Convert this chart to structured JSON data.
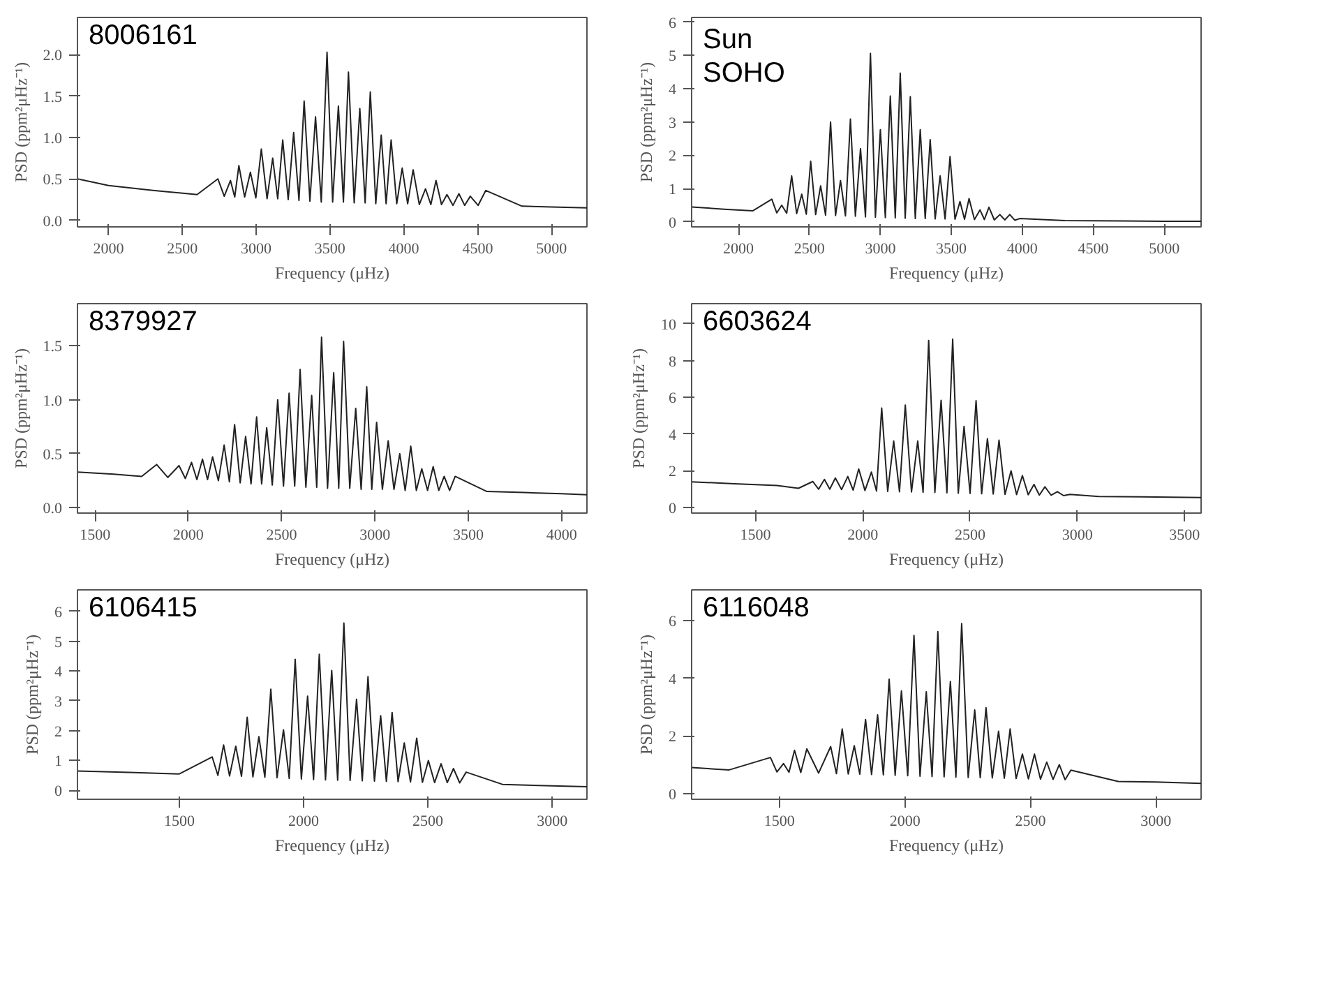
{
  "chart_data": [
    {
      "type": "line",
      "xlabel": "Frequency (μHz)",
      "ylabel": "PSD (ppm²μHz⁻¹)",
      "annotations": [
        "8006161"
      ],
      "grid": false,
      "xlim": [
        1790,
        5240
      ],
      "ylim": [
        -0.08,
        2.45
      ],
      "xticks": [
        2000,
        2500,
        3000,
        3500,
        4000,
        4500,
        5000
      ],
      "yticks": [
        {
          "value": 0,
          "label": "0.0"
        },
        {
          "value": 0.5,
          "label": "0.5"
        },
        {
          "value": 1,
          "label": "1.0"
        },
        {
          "value": 1.5,
          "label": "1.5"
        },
        {
          "value": 2,
          "label": "2.0"
        }
      ],
      "series": [
        {
          "color": "#222222",
          "x": [
            1790,
            2000,
            2300,
            2600,
            2741,
            2784,
            2826,
            2855,
            2883,
            2922,
            2961,
            2998,
            3035,
            3074,
            3112,
            3146,
            3180,
            3217,
            3254,
            3290,
            3325,
            3364,
            3402,
            3441,
            3480,
            3518,
            3557,
            3591,
            3625,
            3664,
            3702,
            3738,
            3773,
            3810,
            3847,
            3880,
            3914,
            3952,
            3989,
            4026,
            4063,
            4105,
            4147,
            4183,
            4218,
            4255,
            4292,
            4333,
            4373,
            4412,
            4450,
            4503,
            4555,
            4800,
            5000,
            5240
          ],
          "values": [
            0.5,
            0.42,
            0.36,
            0.31,
            0.5,
            0.29,
            0.48,
            0.28,
            0.66,
            0.28,
            0.58,
            0.27,
            0.86,
            0.26,
            0.75,
            0.26,
            0.97,
            0.25,
            1.06,
            0.24,
            1.44,
            0.23,
            1.25,
            0.22,
            2.03,
            0.22,
            1.38,
            0.22,
            1.79,
            0.21,
            1.35,
            0.21,
            1.55,
            0.2,
            1.03,
            0.2,
            0.97,
            0.2,
            0.63,
            0.2,
            0.61,
            0.19,
            0.38,
            0.19,
            0.48,
            0.19,
            0.31,
            0.18,
            0.32,
            0.18,
            0.29,
            0.18,
            0.36,
            0.17,
            0.16,
            0.15
          ]
        }
      ]
    },
    {
      "type": "line",
      "xlabel": "Frequency (μHz)",
      "ylabel": "PSD (ppm²μHz⁻¹)",
      "annotations": [
        "Sun",
        "SOHO"
      ],
      "grid": false,
      "xlim": [
        1670,
        5260
      ],
      "ylim": [
        -0.15,
        6.14
      ],
      "xticks": [
        2000,
        2500,
        3000,
        3500,
        4000,
        4500,
        5000
      ],
      "yticks": [
        0,
        1,
        2,
        3,
        4,
        5,
        6
      ],
      "series": [
        {
          "color": "#222222",
          "x": [
            1670,
            1900,
            2100,
            2235,
            2270,
            2305,
            2340,
            2375,
            2410,
            2446,
            2478,
            2509,
            2544,
            2579,
            2614,
            2649,
            2684,
            2719,
            2754,
            2789,
            2824,
            2860,
            2895,
            2930,
            2965,
            3000,
            3035,
            3070,
            3105,
            3140,
            3175,
            3211,
            3246,
            3281,
            3316,
            3351,
            3386,
            3421,
            3456,
            3491,
            3526,
            3561,
            3593,
            3625,
            3663,
            3702,
            3733,
            3765,
            3803,
            3842,
            3877,
            3912,
            3947,
            3982,
            4300,
            4700,
            5000,
            5260
          ],
          "values": [
            0.45,
            0.38,
            0.33,
            0.68,
            0.27,
            0.5,
            0.26,
            1.38,
            0.25,
            0.83,
            0.23,
            1.82,
            0.22,
            1.08,
            0.2,
            3.0,
            0.19,
            1.24,
            0.18,
            3.09,
            0.17,
            2.2,
            0.15,
            5.06,
            0.14,
            2.77,
            0.13,
            3.78,
            0.12,
            4.47,
            0.11,
            3.76,
            0.1,
            2.77,
            0.1,
            2.47,
            0.09,
            1.38,
            0.09,
            1.96,
            0.08,
            0.61,
            0.08,
            0.7,
            0.07,
            0.36,
            0.07,
            0.44,
            0.06,
            0.22,
            0.06,
            0.22,
            0.05,
            0.1,
            0.04,
            0.03,
            0.02,
            0.02
          ]
        }
      ]
    },
    {
      "type": "line",
      "xlabel": "Frequency (μHz)",
      "ylabel": "PSD (ppm²μHz⁻¹)",
      "annotations": [
        "8379927"
      ],
      "grid": false,
      "xlim": [
        1406,
        4136
      ],
      "ylim": [
        -0.05,
        1.89
      ],
      "xticks": [
        1500,
        2000,
        2500,
        3000,
        3500,
        4000
      ],
      "yticks": [
        {
          "value": 0,
          "label": "0.0"
        },
        {
          "value": 0.5,
          "label": "0.5"
        },
        {
          "value": 1,
          "label": "1.0"
        },
        {
          "value": 1.5,
          "label": "1.5"
        }
      ],
      "series": [
        {
          "color": "#222222",
          "x": [
            1406,
            1600,
            1750,
            1830,
            1890,
            1950,
            1984,
            2017,
            2046,
            2076,
            2103,
            2130,
            2161,
            2192,
            2220,
            2248,
            2278,
            2307,
            2336,
            2366,
            2393,
            2420,
            2450,
            2479,
            2510,
            2540,
            2570,
            2599,
            2630,
            2661,
            2688,
            2714,
            2746,
            2779,
            2806,
            2832,
            2865,
            2897,
            2926,
            2956,
            2983,
            3009,
            3040,
            3071,
            3102,
            3133,
            3162,
            3192,
            3222,
            3251,
            3282,
            3312,
            3342,
            3371,
            3400,
            3430,
            3600,
            3800,
            4000,
            4136
          ],
          "values": [
            0.33,
            0.31,
            0.29,
            0.4,
            0.28,
            0.39,
            0.27,
            0.42,
            0.26,
            0.45,
            0.26,
            0.47,
            0.25,
            0.58,
            0.24,
            0.77,
            0.23,
            0.66,
            0.22,
            0.84,
            0.22,
            0.74,
            0.21,
            1.0,
            0.2,
            1.06,
            0.2,
            1.28,
            0.19,
            1.04,
            0.19,
            1.58,
            0.18,
            1.25,
            0.18,
            1.54,
            0.18,
            0.92,
            0.17,
            1.12,
            0.17,
            0.79,
            0.17,
            0.62,
            0.17,
            0.5,
            0.16,
            0.57,
            0.16,
            0.36,
            0.16,
            0.38,
            0.16,
            0.29,
            0.16,
            0.29,
            0.15,
            0.14,
            0.13,
            0.12
          ]
        }
      ]
    },
    {
      "type": "line",
      "xlabel": "Frequency (μHz)",
      "ylabel": "PSD (ppm²μHz⁻¹)",
      "annotations": [
        "6603624"
      ],
      "grid": false,
      "xlim": [
        1202,
        3577
      ],
      "ylim": [
        -0.3,
        11.1
      ],
      "xticks": [
        1500,
        2000,
        2500,
        3000,
        3500
      ],
      "yticks": [
        0,
        2,
        4,
        6,
        8,
        10
      ],
      "series": [
        {
          "color": "#222222",
          "x": [
            1202,
            1400,
            1600,
            1700,
            1767,
            1794,
            1821,
            1846,
            1872,
            1901,
            1930,
            1955,
            1981,
            2010,
            2040,
            2064,
            2088,
            2116,
            2144,
            2171,
            2198,
            2227,
            2256,
            2281,
            2307,
            2336,
            2365,
            2392,
            2419,
            2445,
            2472,
            2500,
            2528,
            2554,
            2581,
            2608,
            2635,
            2663,
            2691,
            2717,
            2744,
            2771,
            2798,
            2823,
            2849,
            2878,
            2907,
            2936,
            2965,
            3100,
            3300,
            3577
          ],
          "values": [
            1.4,
            1.3,
            1.2,
            1.05,
            1.42,
            1.0,
            1.53,
            1.0,
            1.61,
            0.98,
            1.69,
            0.95,
            2.1,
            0.93,
            1.93,
            0.9,
            5.42,
            0.88,
            3.62,
            0.86,
            5.58,
            0.85,
            3.62,
            0.83,
            9.1,
            0.82,
            5.84,
            0.8,
            9.17,
            0.78,
            4.42,
            0.77,
            5.82,
            0.75,
            3.75,
            0.74,
            3.67,
            0.72,
            2.0,
            0.71,
            1.74,
            0.7,
            1.26,
            0.68,
            1.13,
            0.67,
            0.86,
            0.65,
            0.72,
            0.6,
            0.58,
            0.55
          ]
        }
      ]
    },
    {
      "type": "line",
      "xlabel": "Frequency (μHz)",
      "ylabel": "PSD (ppm²μHz⁻¹)",
      "annotations": [
        "6106415"
      ],
      "grid": false,
      "xlim": [
        1090,
        3140
      ],
      "ylim": [
        -0.3,
        6.72
      ],
      "xticks": [
        1500,
        2000,
        2500,
        3000
      ],
      "yticks": [
        0,
        1,
        2,
        3,
        4,
        5,
        6
      ],
      "series": [
        {
          "color": "#222222",
          "x": [
            1090,
            1300,
            1500,
            1632,
            1655,
            1678,
            1702,
            1727,
            1750,
            1773,
            1796,
            1820,
            1844,
            1868,
            1893,
            1919,
            1942,
            1966,
            1991,
            2016,
            2040,
            2063,
            2088,
            2113,
            2137,
            2162,
            2187,
            2213,
            2236,
            2259,
            2285,
            2310,
            2333,
            2356,
            2380,
            2405,
            2430,
            2455,
            2478,
            2502,
            2527,
            2553,
            2578,
            2603,
            2628,
            2654,
            2800,
            3000,
            3140
          ],
          "values": [
            0.65,
            0.6,
            0.55,
            1.12,
            0.5,
            1.52,
            0.48,
            1.48,
            0.47,
            2.45,
            0.45,
            1.8,
            0.44,
            3.39,
            0.42,
            2.03,
            0.4,
            4.39,
            0.38,
            3.16,
            0.36,
            4.56,
            0.35,
            4.02,
            0.34,
            5.61,
            0.33,
            3.05,
            0.32,
            3.81,
            0.31,
            2.5,
            0.3,
            2.61,
            0.29,
            1.59,
            0.28,
            1.75,
            0.27,
            1.0,
            0.26,
            0.89,
            0.26,
            0.73,
            0.25,
            0.61,
            0.2,
            0.15,
            0.12
          ]
        }
      ]
    },
    {
      "type": "line",
      "xlabel": "Frequency (μHz)",
      "ylabel": "PSD (ppm²μHz⁻¹)",
      "annotations": [
        "6116048"
      ],
      "grid": false,
      "xlim": [
        1150,
        3180
      ],
      "ylim": [
        -0.2,
        7.07
      ],
      "xticks": [
        1500,
        2000,
        2500,
        3000
      ],
      "yticks": [
        0,
        2,
        4,
        6
      ],
      "series": [
        {
          "color": "#222222",
          "x": [
            1150,
            1300,
            1464,
            1490,
            1516,
            1538,
            1560,
            1585,
            1609,
            1656,
            1704,
            1727,
            1750,
            1774,
            1798,
            1820,
            1843,
            1867,
            1891,
            1914,
            1937,
            1961,
            1986,
            2011,
            2036,
            2060,
            2085,
            2108,
            2131,
            2156,
            2181,
            2203,
            2226,
            2252,
            2278,
            2300,
            2323,
            2348,
            2373,
            2396,
            2419,
            2443,
            2468,
            2492,
            2516,
            2540,
            2565,
            2590,
            2615,
            2638,
            2661,
            2850,
            3000,
            3180
          ],
          "values": [
            0.9,
            0.82,
            1.25,
            0.75,
            1.04,
            0.74,
            1.5,
            0.73,
            1.55,
            0.71,
            1.63,
            0.69,
            2.24,
            0.68,
            1.66,
            0.67,
            2.57,
            0.66,
            2.73,
            0.65,
            3.97,
            0.63,
            3.56,
            0.62,
            5.49,
            0.6,
            3.53,
            0.59,
            5.62,
            0.58,
            3.89,
            0.57,
            5.9,
            0.56,
            2.9,
            0.55,
            2.98,
            0.54,
            2.16,
            0.53,
            2.24,
            0.52,
            1.37,
            0.51,
            1.37,
            0.5,
            1.09,
            0.49,
            1.0,
            0.48,
            0.81,
            0.42,
            0.4,
            0.35
          ]
        }
      ]
    }
  ]
}
